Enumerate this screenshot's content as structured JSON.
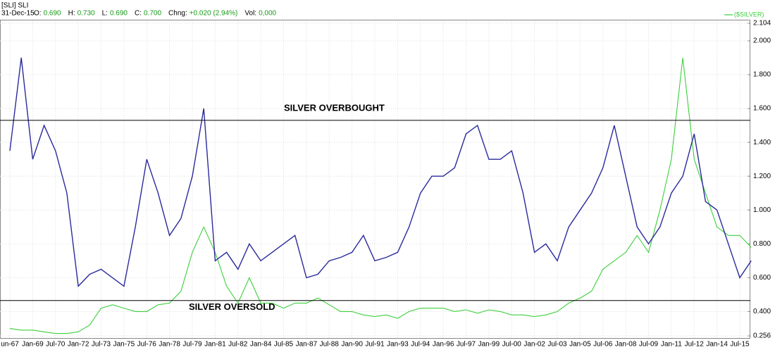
{
  "header": {
    "symbol": "[SLI] SLI",
    "date": "31-Dec-15",
    "fields": [
      {
        "label": "O:",
        "value": "0.690"
      },
      {
        "label": "H:",
        "value": "0.730"
      },
      {
        "label": "L:",
        "value": "0.690"
      },
      {
        "label": "C:",
        "value": "0.700"
      },
      {
        "label": "Chng:",
        "value": "+0.020 (2.94%)"
      },
      {
        "label": "Vol:",
        "value": "0,000"
      }
    ]
  },
  "chart_data": {
    "type": "line",
    "categories": [
      "un-67",
      null,
      "Jan-69",
      null,
      "Jul-70",
      null,
      "Jan-72",
      null,
      "Jul-73",
      null,
      "Jan-75",
      null,
      "Jul-76",
      null,
      "Jan-78",
      null,
      "Jul-79",
      null,
      "Jan-81",
      null,
      "Jul-82",
      null,
      "Jan-84",
      null,
      "Jul-85",
      null,
      "Jan-87",
      null,
      "Jul-88",
      null,
      "Jan-90",
      null,
      "Jul-91",
      null,
      "Jan-93",
      null,
      "Jul-94",
      null,
      "Jan-96",
      null,
      "Jul-97",
      null,
      "Jan-99",
      null,
      "Jul-00",
      null,
      "Jan-02",
      null,
      "Jul-03",
      null,
      "Jan-05",
      null,
      "Jul-06",
      null,
      "Jan-08",
      null,
      "Jul-09",
      null,
      "Jan-11",
      null,
      "Jul-12",
      null,
      "Jan-14",
      null,
      "Jul-15",
      null
    ],
    "series": [
      {
        "name": "SLI",
        "color": "#2a2a9c",
        "values": [
          1.35,
          1.9,
          1.3,
          1.5,
          1.35,
          1.1,
          0.55,
          0.62,
          0.65,
          0.6,
          0.55,
          0.9,
          1.3,
          1.1,
          0.85,
          0.95,
          1.2,
          1.6,
          0.7,
          0.75,
          0.65,
          0.8,
          0.7,
          0.75,
          0.8,
          0.85,
          0.6,
          0.62,
          0.7,
          0.72,
          0.75,
          0.85,
          0.7,
          0.72,
          0.75,
          0.9,
          1.1,
          1.2,
          1.2,
          1.25,
          1.45,
          1.5,
          1.3,
          1.3,
          1.35,
          1.1,
          0.75,
          0.8,
          0.7,
          0.9,
          1.0,
          1.1,
          1.25,
          1.5,
          1.2,
          0.9,
          0.8,
          0.9,
          1.1,
          1.2,
          1.45,
          1.05,
          1.0,
          0.8,
          0.6,
          0.7
        ]
      },
      {
        "name": "($SILVER)",
        "color": "#3ccf3c",
        "values": [
          0.3,
          0.29,
          0.29,
          0.28,
          0.27,
          0.27,
          0.28,
          0.32,
          0.42,
          0.44,
          0.42,
          0.4,
          0.4,
          0.44,
          0.45,
          0.52,
          0.75,
          0.9,
          0.75,
          0.55,
          0.45,
          0.6,
          0.45,
          0.45,
          0.42,
          0.45,
          0.45,
          0.48,
          0.44,
          0.4,
          0.4,
          0.38,
          0.37,
          0.38,
          0.36,
          0.4,
          0.42,
          0.42,
          0.42,
          0.4,
          0.41,
          0.39,
          0.41,
          0.4,
          0.38,
          0.38,
          0.37,
          0.38,
          0.4,
          0.45,
          0.48,
          0.52,
          0.65,
          0.7,
          0.75,
          0.85,
          0.75,
          1.0,
          1.3,
          1.9,
          1.3,
          1.1,
          0.9,
          0.85,
          0.85,
          0.78
        ]
      }
    ],
    "hlines": [
      {
        "value": 1.53,
        "label": "SILVER OVERBOUGHT"
      },
      {
        "value": 0.465,
        "label": "SILVER OVERSOLD"
      }
    ],
    "ylim": [
      0.256,
      2.104
    ],
    "yticks": [
      0.256,
      {
        "value": 0.4,
        "label": "0.400"
      },
      {
        "value": 0.6,
        "label": "0.600"
      },
      {
        "value": 0.8,
        "label": "0.800"
      },
      {
        "value": 1.0,
        "label": "1.000"
      },
      {
        "value": 1.2,
        "label": "1.200"
      },
      {
        "value": 1.4,
        "label": "1.400"
      },
      {
        "value": 1.6,
        "label": "1.600"
      },
      {
        "value": 1.8,
        "label": "1.800"
      },
      {
        "value": 2.0,
        "label": "2.000"
      },
      2.104
    ],
    "grid": true
  }
}
